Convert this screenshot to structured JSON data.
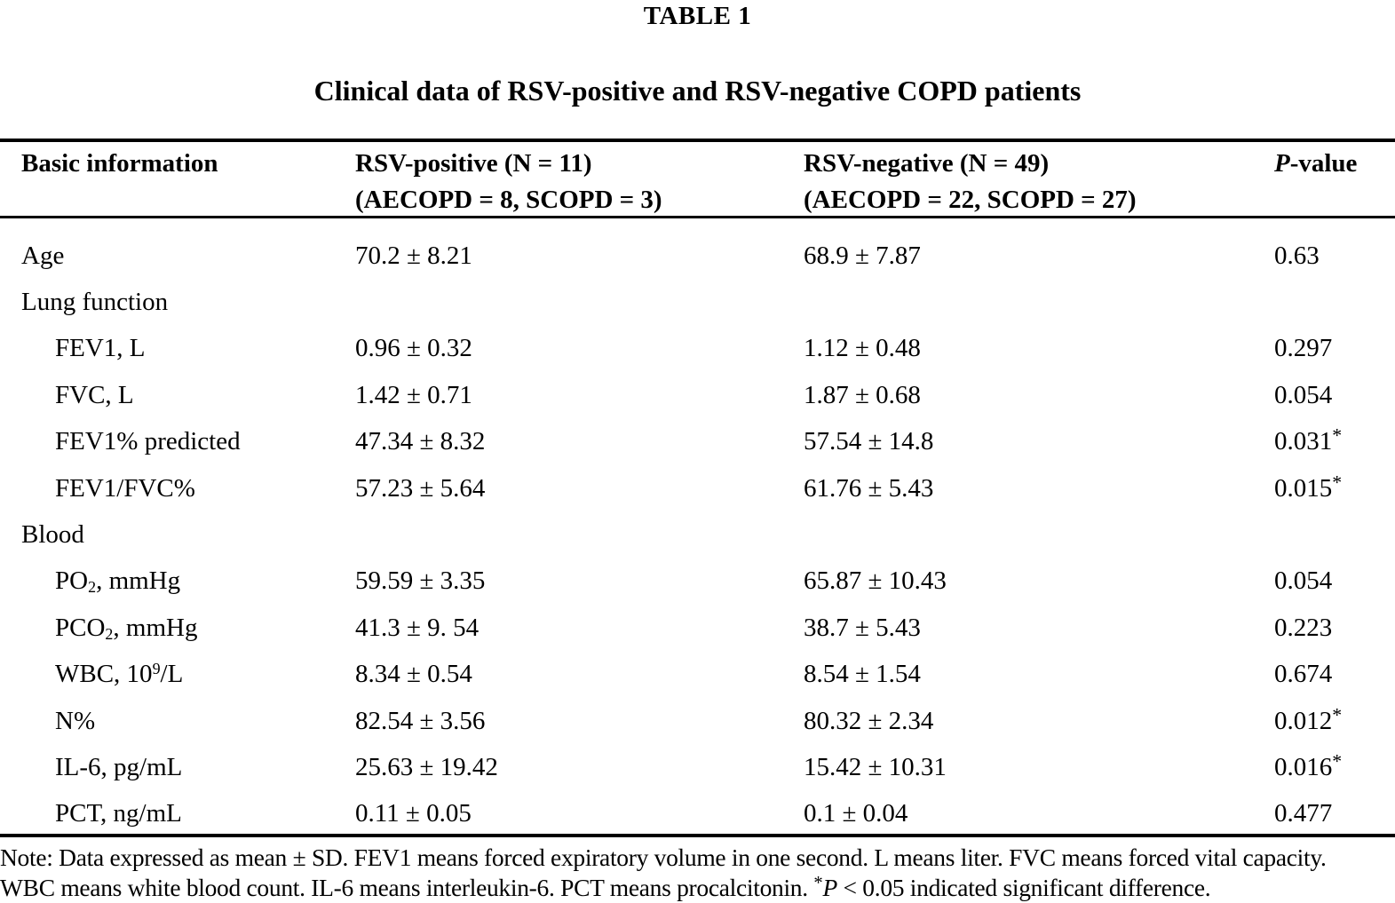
{
  "colors": {
    "ink": "#000000",
    "paper": "#ffffff"
  },
  "table": {
    "label": "TABLE 1",
    "caption": "Clinical data of RSV-positive and RSV-negative COPD patients",
    "columns": [
      {
        "label": "Basic information"
      },
      {
        "line1": "RSV-positive (N = 11)",
        "line2": "(AECOPD = 8, SCOPD = 3)"
      },
      {
        "line1": "RSV-negative (N = 49)",
        "line2": "(AECOPD = 22, SCOPD = 27)"
      },
      {
        "italic": "P",
        "rest": "-value"
      }
    ],
    "significance_marker": "*",
    "rows": [
      {
        "section": false,
        "indent": false,
        "label": [
          {
            "t": "Age"
          }
        ],
        "rsv_positive": "70.2 ± 8.21",
        "rsv_negative": "68.9 ± 7.87",
        "p": "0.63",
        "star": false
      },
      {
        "section": true,
        "indent": false,
        "label": [
          {
            "t": "Lung function"
          }
        ],
        "rsv_positive": "",
        "rsv_negative": "",
        "p": "",
        "star": false
      },
      {
        "section": false,
        "indent": true,
        "label": [
          {
            "t": "FEV1, L"
          }
        ],
        "rsv_positive": "0.96 ± 0.32",
        "rsv_negative": "1.12 ± 0.48",
        "p": "0.297",
        "star": false
      },
      {
        "section": false,
        "indent": true,
        "label": [
          {
            "t": "FVC, L"
          }
        ],
        "rsv_positive": "1.42 ± 0.71",
        "rsv_negative": "1.87 ± 0.68",
        "p": "0.054",
        "star": false
      },
      {
        "section": false,
        "indent": true,
        "label": [
          {
            "t": "FEV1% predicted"
          }
        ],
        "rsv_positive": "47.34 ± 8.32",
        "rsv_negative": "57.54 ± 14.8",
        "p": "0.031",
        "star": true
      },
      {
        "section": false,
        "indent": true,
        "label": [
          {
            "t": "FEV1/FVC%"
          }
        ],
        "rsv_positive": "57.23 ± 5.64",
        "rsv_negative": "61.76 ± 5.43",
        "p": "0.015",
        "star": true
      },
      {
        "section": true,
        "indent": false,
        "label": [
          {
            "t": "Blood"
          }
        ],
        "rsv_positive": "",
        "rsv_negative": "",
        "p": "",
        "star": false
      },
      {
        "section": false,
        "indent": true,
        "label": [
          {
            "t": "PO"
          },
          {
            "t": "2",
            "s": "sub"
          },
          {
            "t": ", mmHg"
          }
        ],
        "rsv_positive": "59.59 ± 3.35",
        "rsv_negative": "65.87 ± 10.43",
        "p": "0.054",
        "star": false
      },
      {
        "section": false,
        "indent": true,
        "label": [
          {
            "t": "PCO"
          },
          {
            "t": "2",
            "s": "sub"
          },
          {
            "t": ", mmHg"
          }
        ],
        "rsv_positive": "41.3 ± 9. 54",
        "rsv_negative": "38.7 ± 5.43",
        "p": "0.223",
        "star": false
      },
      {
        "section": false,
        "indent": true,
        "label": [
          {
            "t": "WBC, 10"
          },
          {
            "t": "9",
            "s": "sup"
          },
          {
            "t": "/L"
          }
        ],
        "rsv_positive": "8.34 ± 0.54",
        "rsv_negative": "8.54 ± 1.54",
        "p": "0.674",
        "star": false
      },
      {
        "section": false,
        "indent": true,
        "label": [
          {
            "t": "N%"
          }
        ],
        "rsv_positive": "82.54 ± 3.56",
        "rsv_negative": "80.32 ± 2.34",
        "p": "0.012",
        "star": true
      },
      {
        "section": false,
        "indent": true,
        "label": [
          {
            "t": "IL-6, pg/mL"
          }
        ],
        "rsv_positive": "25.63 ± 19.42",
        "rsv_negative": "15.42 ± 10.31",
        "p": "0.016",
        "star": true
      },
      {
        "section": false,
        "indent": true,
        "label": [
          {
            "t": "PCT, ng/mL"
          }
        ],
        "rsv_positive": "0.11 ± 0.05",
        "rsv_negative": "0.1 ± 0.04",
        "p": "0.477",
        "star": false
      }
    ],
    "note_line1": "Note: Data expressed as mean ± SD. FEV1 means forced expiratory volume in one second. L means liter. FVC means forced vital capacity.",
    "note2_pre": "WBC means white blood count. IL-6 means interleukin-6. PCT means procalcitonin. ",
    "note2_star": "*",
    "note2_p": "P",
    "note2_post": " < 0.05 indicated significant difference."
  }
}
